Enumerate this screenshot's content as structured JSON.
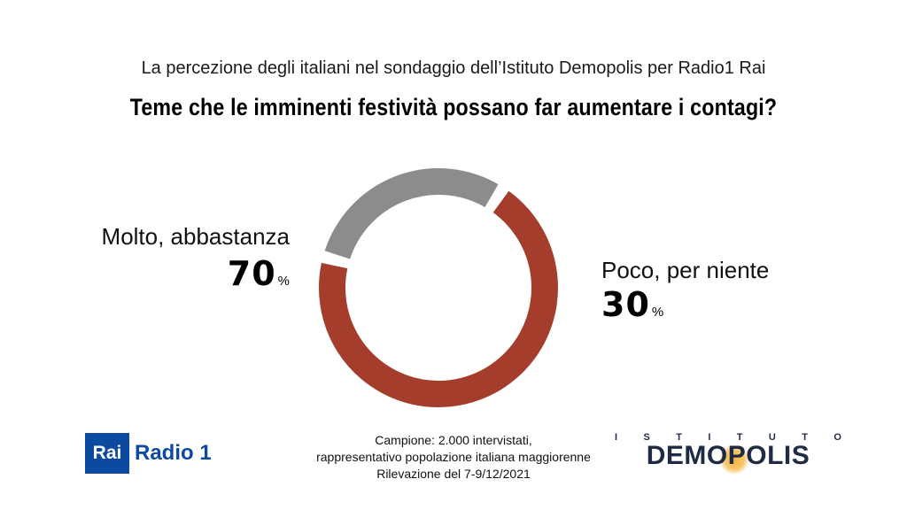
{
  "header": {
    "subtitle": "La percezione degli italiani nel sondaggio dell’Istituto Demopolis per Radio1 Rai",
    "title": "Teme che le imminenti festività possano far aumentare i contagi?"
  },
  "chart_data": {
    "type": "pie",
    "donut": true,
    "unit": "%",
    "slices": [
      {
        "label": "Molto, abbastanza",
        "value": 70,
        "value_text": "70",
        "color": "#a53d2c"
      },
      {
        "label": "Poco, per niente",
        "value": 30,
        "value_text": "30",
        "color": "#8c8c8c"
      }
    ]
  },
  "footer": {
    "line1": "Campione: 2.000 intervistati,",
    "line2": "rappresentativo popolazione italiana maggiorenne",
    "line3": "Rilevazione del 7-9/12/2021"
  },
  "logos": {
    "rai_box": "Rai",
    "rai_radio": "Radio 1",
    "demopolis_top": [
      "I",
      "S",
      "T",
      "I",
      "T",
      "U",
      "T",
      "O"
    ],
    "demopolis_main": "DEMOPOLIS"
  }
}
